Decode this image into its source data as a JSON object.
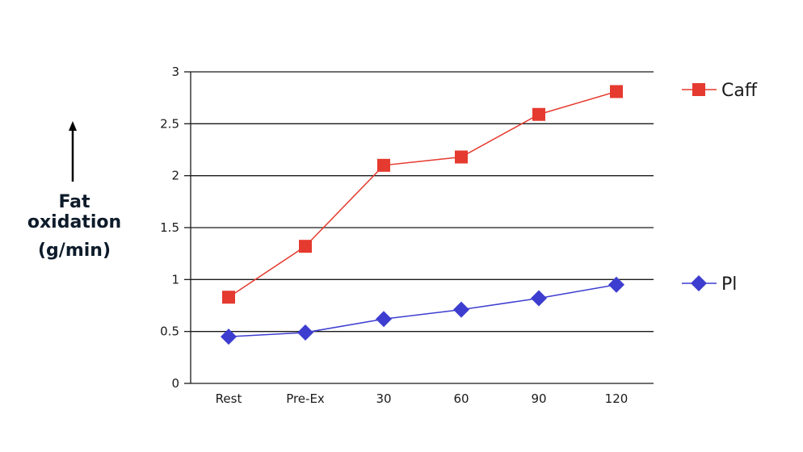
{
  "chart_data": {
    "type": "line",
    "categories": [
      "Rest",
      "Pre-Ex",
      "30",
      "60",
      "90",
      "120"
    ],
    "series": [
      {
        "name": "Caff",
        "values": [
          0.83,
          1.32,
          2.1,
          2.18,
          2.59,
          2.81
        ],
        "color": "#e53a2f",
        "marker": "square"
      },
      {
        "name": "Pl",
        "values": [
          0.45,
          0.49,
          0.62,
          0.71,
          0.82,
          0.95
        ],
        "color": "#3d3dd0",
        "marker": "diamond"
      }
    ],
    "ylabel_lines": [
      "Fat",
      "oxidation",
      "(g/min)"
    ],
    "yticks": [
      "0",
      "0.5",
      "1",
      "1.5",
      "2",
      "2.5",
      "3"
    ],
    "ylim": [
      0,
      3
    ],
    "grid": true,
    "legend_position": "right"
  }
}
